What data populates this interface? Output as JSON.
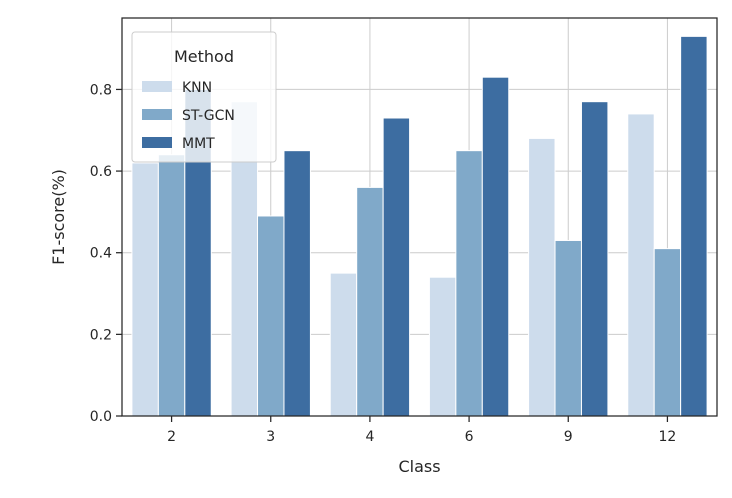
{
  "chart_data": {
    "type": "bar",
    "categories": [
      "2",
      "3",
      "4",
      "6",
      "9",
      "12"
    ],
    "series": [
      {
        "name": "KNN",
        "values": [
          0.62,
          0.77,
          0.35,
          0.34,
          0.68,
          0.74
        ],
        "color": "#cddcec"
      },
      {
        "name": "ST-GCN",
        "values": [
          0.64,
          0.49,
          0.56,
          0.65,
          0.43,
          0.41
        ],
        "color": "#80a9c9"
      },
      {
        "name": "MMT",
        "values": [
          0.8,
          0.65,
          0.73,
          0.83,
          0.77,
          0.93
        ],
        "color": "#3d6da1"
      }
    ],
    "title": "",
    "xlabel": "Class",
    "ylabel": "F1-score(%)",
    "ylim": [
      0,
      0.975
    ],
    "yticks": [
      0.0,
      0.2,
      0.4,
      0.6,
      0.8
    ],
    "ytick_labels": [
      "0.0",
      "0.2",
      "0.4",
      "0.6",
      "0.8"
    ],
    "grid": true,
    "legend": {
      "title": "Method",
      "position": "upper-left"
    }
  }
}
